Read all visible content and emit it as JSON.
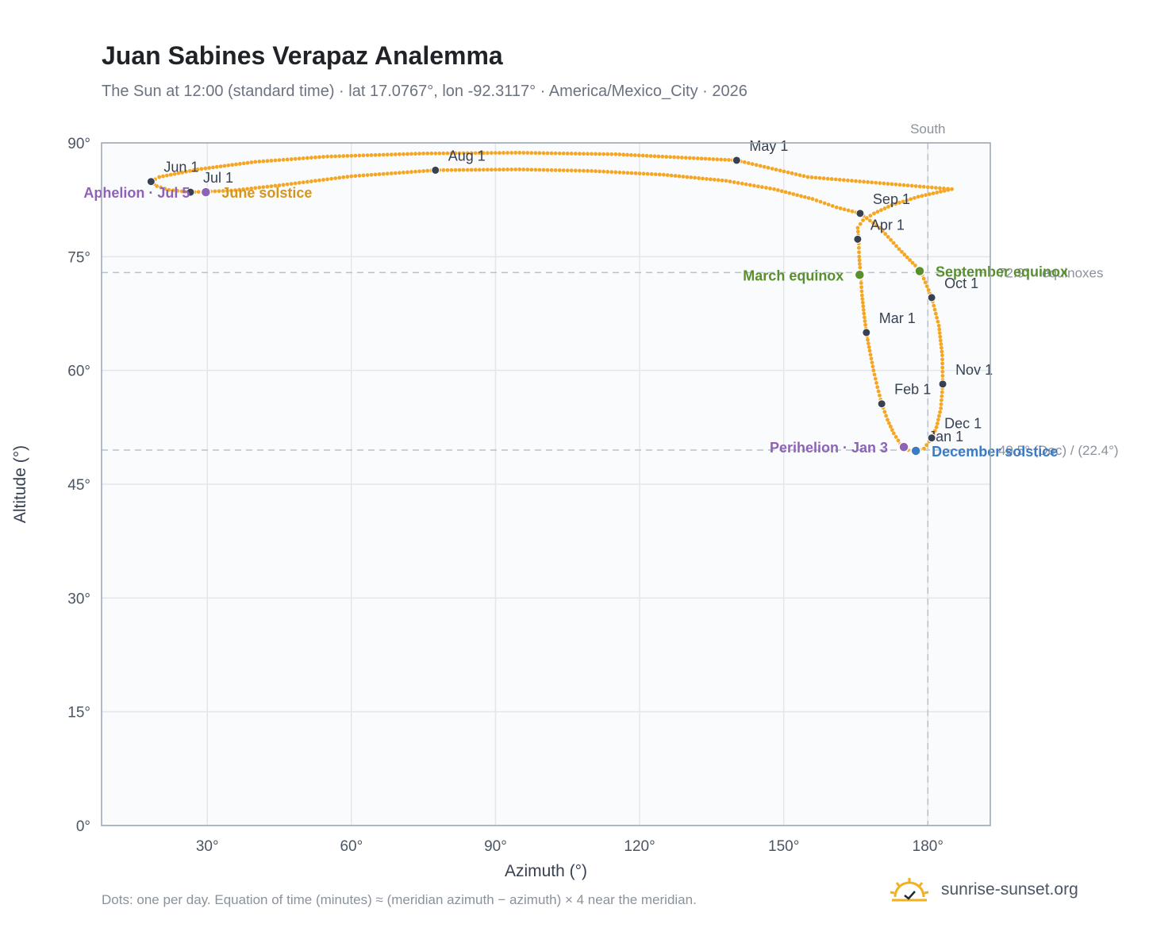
{
  "header": {
    "title": "Juan Sabines Verapaz Analemma",
    "subtitle": "The Sun at 12:00 (standard time) · lat 17.0767°, lon -92.3117° · America/Mexico_City · 2026"
  },
  "footer": {
    "note": "Dots: one per day. Equation of time (minutes) ≈ (meridian azimuth − azimuth) × 4 near the meridian.",
    "brand": "sunrise-sunset.org"
  },
  "colors": {
    "curve": "#f5a623",
    "month_marker": "#374151",
    "equinox": "#5a8f2e",
    "december_solstice": "#3b7ac4",
    "june_solstice": "#d4961f",
    "apsis": "#8e62b6",
    "plot_bg": "#f9fbfd",
    "grid": "#e3e7ec",
    "reference_line": "#b8c2cc"
  },
  "chart_data": {
    "type": "scatter",
    "xlabel": "Azimuth (°)",
    "ylabel": "Altitude (°)",
    "xlim": [
      8,
      193
    ],
    "ylim": [
      0,
      90
    ],
    "x_ticks": [
      {
        "value": 30,
        "label": "30°"
      },
      {
        "value": 60,
        "label": "60°"
      },
      {
        "value": 90,
        "label": "90°"
      },
      {
        "value": 120,
        "label": "120°"
      },
      {
        "value": 150,
        "label": "150°"
      },
      {
        "value": 180,
        "label": "180°"
      }
    ],
    "y_ticks": [
      {
        "value": 0,
        "label": "0°"
      },
      {
        "value": 15,
        "label": "15°"
      },
      {
        "value": 30,
        "label": "30°"
      },
      {
        "value": 45,
        "label": "45°"
      },
      {
        "value": 60,
        "label": "60°"
      },
      {
        "value": 75,
        "label": "75°"
      },
      {
        "value": 90,
        "label": "90°"
      }
    ],
    "grid": true,
    "series": [
      {
        "points": [
          [
            177.5,
            49.4
          ],
          [
            175.9,
            49.5
          ],
          [
            174.3,
            50.3
          ],
          [
            172.9,
            51.7
          ],
          [
            171.6,
            53.5
          ],
          [
            170.4,
            55.6
          ],
          [
            169.5,
            57.8
          ],
          [
            168.7,
            60.0
          ],
          [
            167.9,
            62.6
          ],
          [
            167.2,
            65.0
          ],
          [
            166.7,
            67.5
          ],
          [
            166.3,
            69.9
          ],
          [
            166.0,
            72.6
          ],
          [
            165.7,
            75.0
          ],
          [
            165.6,
            77.3
          ],
          [
            165.4,
            78.8
          ],
          [
            166.5,
            79.8
          ],
          [
            168.8,
            80.7
          ],
          [
            172.5,
            81.8
          ],
          [
            178.0,
            82.9
          ],
          [
            185.0,
            83.9
          ],
          [
            155.0,
            85.5
          ],
          [
            140.2,
            87.7
          ],
          [
            115.0,
            88.5
          ],
          [
            95.0,
            88.7
          ],
          [
            75.0,
            88.6
          ],
          [
            55.0,
            88.2
          ],
          [
            40.0,
            87.5
          ],
          [
            28.0,
            86.5
          ],
          [
            20.0,
            85.5
          ],
          [
            18.3,
            84.9
          ],
          [
            19.5,
            84.3
          ],
          [
            22.0,
            83.8
          ],
          [
            26.5,
            83.5
          ],
          [
            35.0,
            83.7
          ],
          [
            45.0,
            84.4
          ],
          [
            60.0,
            85.6
          ],
          [
            77.5,
            86.4
          ],
          [
            95.0,
            86.5
          ],
          [
            110.0,
            86.3
          ],
          [
            125.0,
            85.8
          ],
          [
            138.0,
            85.0
          ],
          [
            148.0,
            83.9
          ],
          [
            156.0,
            82.6
          ],
          [
            161.0,
            81.5
          ],
          [
            165.9,
            80.7
          ],
          [
            170.0,
            78.8
          ],
          [
            174.0,
            76.0
          ],
          [
            178.5,
            73.1
          ],
          [
            180.8,
            69.6
          ],
          [
            182.3,
            65.9
          ],
          [
            183.0,
            62.0
          ],
          [
            183.1,
            58.2
          ],
          [
            182.7,
            55.0
          ],
          [
            181.8,
            52.5
          ],
          [
            180.8,
            51.1
          ],
          [
            179.2,
            49.7
          ],
          [
            177.5,
            49.4
          ]
        ]
      }
    ],
    "month_markers": [
      {
        "label": "Jan 1",
        "az": 177.5,
        "alt": 49.4
      },
      {
        "label": "Feb 1",
        "az": 170.4,
        "alt": 55.6
      },
      {
        "label": "Mar 1",
        "az": 167.2,
        "alt": 65.0
      },
      {
        "label": "Apr 1",
        "az": 165.4,
        "alt": 77.3
      },
      {
        "label": "May 1",
        "az": 140.2,
        "alt": 87.7
      },
      {
        "label": "Jun 1",
        "az": 18.3,
        "alt": 84.9
      },
      {
        "label": "Jul 1",
        "az": 26.5,
        "alt": 83.5
      },
      {
        "label": "Aug 1",
        "az": 77.5,
        "alt": 86.4
      },
      {
        "label": "Sep 1",
        "az": 165.9,
        "alt": 80.7
      },
      {
        "label": "Oct 1",
        "az": 180.8,
        "alt": 69.6
      },
      {
        "label": "Nov 1",
        "az": 183.1,
        "alt": 58.2
      },
      {
        "label": "Dec 1",
        "az": 180.8,
        "alt": 51.1
      }
    ],
    "events": [
      {
        "label": "March equinox",
        "az": 165.8,
        "alt": 72.6,
        "color": "#5a8f2e"
      },
      {
        "label": "September equinox",
        "az": 178.3,
        "alt": 73.1,
        "color": "#5a8f2e"
      },
      {
        "label": "June solstice",
        "az": 29.7,
        "alt": 83.5,
        "color": "#d4961f"
      },
      {
        "label": "December solstice",
        "az": 177.5,
        "alt": 49.4,
        "color": "#3b7ac4"
      },
      {
        "label": "Perihelion · Jan 3",
        "az": 175.0,
        "alt": 49.9,
        "color": "#8e62b6"
      },
      {
        "label": "Aphelion · Jul 5",
        "az": 29.7,
        "alt": 83.5,
        "color": "#8e62b6"
      }
    ],
    "reference_lines": [
      {
        "orientation": "horizontal",
        "alt": 72.9,
        "label": "72.9° · equinoxes"
      },
      {
        "orientation": "horizontal",
        "alt": 49.5,
        "label": "49.5° (Dec) / (22.4°)"
      },
      {
        "orientation": "vertical",
        "az": 180,
        "label": "South"
      }
    ]
  }
}
